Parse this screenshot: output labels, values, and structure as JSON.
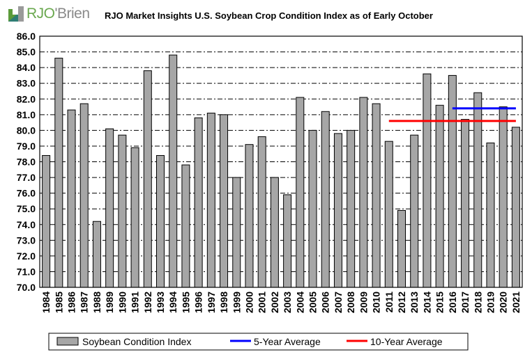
{
  "logo": {
    "brand": "RJO'Brien",
    "icon": "rjo-square-logo-icon"
  },
  "colors": {
    "bar": "#a6a6a6",
    "five_year": "#0000ff",
    "ten_year": "#ff0000"
  },
  "chart_data": {
    "type": "bar",
    "title": "RJO Market Insights U.S. Soybean Crop Condition Index as of Early October",
    "xlabel": "",
    "ylabel": "",
    "ylim": [
      70,
      86
    ],
    "ytick_step": 1,
    "yticks": [
      "70.0",
      "71.0",
      "72.0",
      "73.0",
      "74.0",
      "75.0",
      "76.0",
      "77.0",
      "78.0",
      "79.0",
      "80.0",
      "81.0",
      "82.0",
      "83.0",
      "84.0",
      "85.0",
      "86.0"
    ],
    "grid": true,
    "legend_position": "bottom",
    "categories": [
      "1984",
      "1985",
      "1986",
      "1987",
      "1988",
      "1989",
      "1990",
      "1991",
      "1992",
      "1993",
      "1994",
      "1995",
      "1996",
      "1997",
      "1998",
      "1999",
      "2000",
      "2001",
      "2002",
      "2003",
      "2004",
      "2005",
      "2006",
      "2007",
      "2008",
      "2009",
      "2010",
      "2011",
      "2012",
      "2013",
      "2014",
      "2015",
      "2016",
      "2017",
      "2018",
      "2019",
      "2020",
      "2021"
    ],
    "series": [
      {
        "name": "Soybean Condition Index",
        "type": "bar",
        "values": [
          78.4,
          84.6,
          81.3,
          81.7,
          74.2,
          80.1,
          79.7,
          78.9,
          83.8,
          78.4,
          84.8,
          77.8,
          80.8,
          81.1,
          81.0,
          77.0,
          79.1,
          79.6,
          77.0,
          75.9,
          82.1,
          80.0,
          81.2,
          79.8,
          80.0,
          82.1,
          81.7,
          79.3,
          74.9,
          79.7,
          83.6,
          81.6,
          83.5,
          80.7,
          82.4,
          79.2,
          81.5,
          80.2
        ]
      },
      {
        "name": "5-Year Average",
        "type": "line",
        "value": 81.4,
        "x_range": [
          "2016",
          "2021"
        ]
      },
      {
        "name": "10-Year Average",
        "type": "line",
        "value": 80.6,
        "x_range": [
          "2011",
          "2021"
        ]
      }
    ]
  }
}
